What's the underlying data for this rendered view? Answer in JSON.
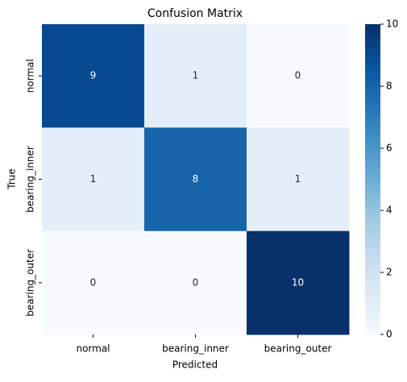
{
  "chart_data": {
    "type": "heatmap",
    "title": "Confusion Matrix",
    "x_label": "Predicted",
    "y_label": "True",
    "x_categories": [
      "normal",
      "bearing_inner",
      "bearing_outer"
    ],
    "y_categories": [
      "normal",
      "bearing_inner",
      "bearing_outer"
    ],
    "values": [
      [
        9,
        1,
        0
      ],
      [
        1,
        8,
        1
      ],
      [
        0,
        0,
        10
      ]
    ],
    "colormap": "Blues",
    "clim": [
      0,
      10
    ],
    "cticks": [
      0,
      2,
      4,
      6,
      8,
      10
    ]
  }
}
